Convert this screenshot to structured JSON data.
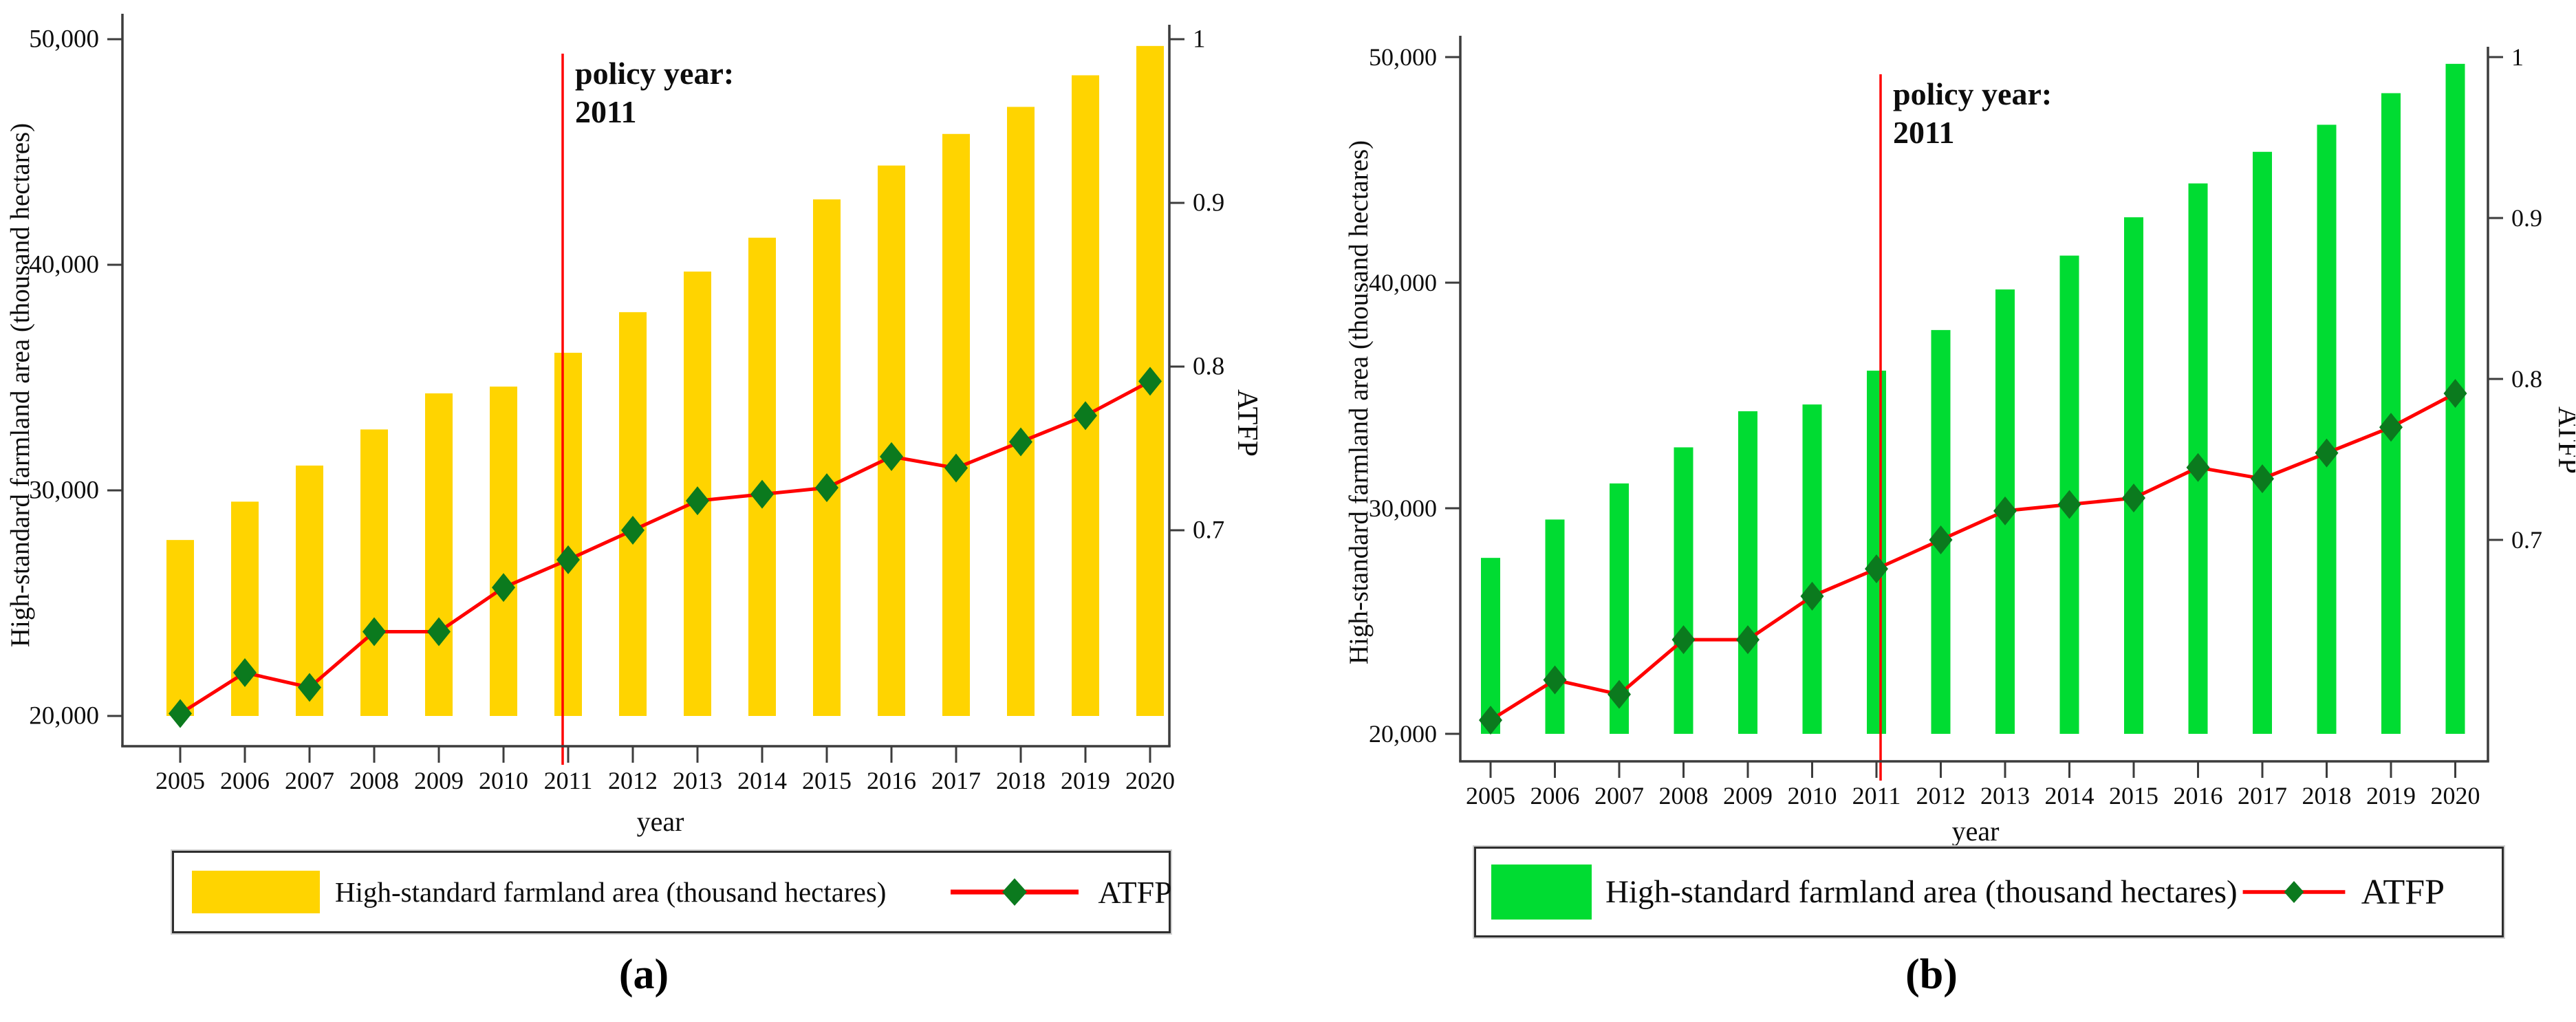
{
  "figure": {
    "background": "#ffffff"
  },
  "colors": {
    "bar_yellow": "#ffd400",
    "bar_green": "#00dc32",
    "line_red": "#ff0000",
    "marker_dark_green": "#0b7a1e",
    "axis": "#3c3c3c",
    "text": "#0d0d0d",
    "annotation_red": "#ff0000"
  },
  "chart_data": [
    {
      "id": "a",
      "caption": "(a)",
      "type": "bar+line dual-axis",
      "title": "",
      "xlabel": "year",
      "categories": [
        2005,
        2006,
        2007,
        2008,
        2009,
        2010,
        2011,
        2012,
        2013,
        2014,
        2015,
        2016,
        2017,
        2018,
        2019,
        2020
      ],
      "left_axis": {
        "label": "High-standard farmland area (thousand hectares)",
        "ticks": [
          50000,
          40000,
          30000,
          20000
        ],
        "min": 20000,
        "max": 50000,
        "bar_baseline": 20000
      },
      "right_axis": {
        "label": "ATFP",
        "ticks": [
          1,
          0.9,
          0.8,
          0.7
        ],
        "min": 0.59,
        "max": 1
      },
      "annotation": {
        "line1": "policy year:",
        "line2": "2011",
        "x_year": 2011,
        "color": "#ff0000"
      },
      "legend": {
        "position": "bottom-center",
        "boxed": true
      },
      "grid": false,
      "series": [
        {
          "name": "High-standard farmland area (thousand hectares)",
          "type": "bar",
          "axis": "left",
          "color": "#ffd400",
          "values": [
            27800,
            29500,
            31100,
            32700,
            34300,
            34600,
            36100,
            37900,
            39700,
            41200,
            42900,
            44400,
            45800,
            47000,
            48400,
            49700
          ]
        },
        {
          "name": "ATFP",
          "type": "line",
          "axis": "right",
          "color": "#ff0000",
          "marker": "diamond",
          "marker_color": "#0b7a1e",
          "values": [
            0.588,
            0.613,
            0.604,
            0.638,
            0.638,
            0.665,
            0.682,
            0.7,
            0.718,
            0.722,
            0.726,
            0.745,
            0.738,
            0.754,
            0.77,
            0.791
          ]
        }
      ]
    },
    {
      "id": "b",
      "caption": "(b)",
      "type": "bar+line dual-axis",
      "title": "",
      "xlabel": "year",
      "categories": [
        2005,
        2006,
        2007,
        2008,
        2009,
        2010,
        2011,
        2012,
        2013,
        2014,
        2015,
        2016,
        2017,
        2018,
        2019,
        2020
      ],
      "left_axis": {
        "label": "High-standard farmland area (thousand hectares)",
        "ticks": [
          50000,
          40000,
          30000,
          20000
        ],
        "min": 20000,
        "max": 50000,
        "bar_baseline": 20000
      },
      "right_axis": {
        "label": "ATFP",
        "ticks": [
          1,
          0.9,
          0.8,
          0.7
        ],
        "min": 0.59,
        "max": 1
      },
      "annotation": {
        "line1": "policy year:",
        "line2": "2011",
        "x_year": 2011,
        "color": "#ff0000"
      },
      "legend": {
        "position": "bottom-center",
        "boxed": true
      },
      "grid": false,
      "series": [
        {
          "name": "High-standard farmland area (thousand hectares)",
          "type": "bar",
          "axis": "left",
          "color": "#00dc32",
          "values": [
            27800,
            29500,
            31100,
            32700,
            34300,
            34600,
            36100,
            37900,
            39700,
            41200,
            42900,
            44400,
            45800,
            47000,
            48400,
            49700
          ]
        },
        {
          "name": "ATFP",
          "type": "line",
          "axis": "right",
          "color": "#ff0000",
          "marker": "diamond",
          "marker_color": "#0b7a1e",
          "values": [
            0.588,
            0.613,
            0.604,
            0.638,
            0.638,
            0.665,
            0.682,
            0.7,
            0.718,
            0.722,
            0.726,
            0.745,
            0.738,
            0.754,
            0.77,
            0.791
          ]
        }
      ]
    }
  ]
}
